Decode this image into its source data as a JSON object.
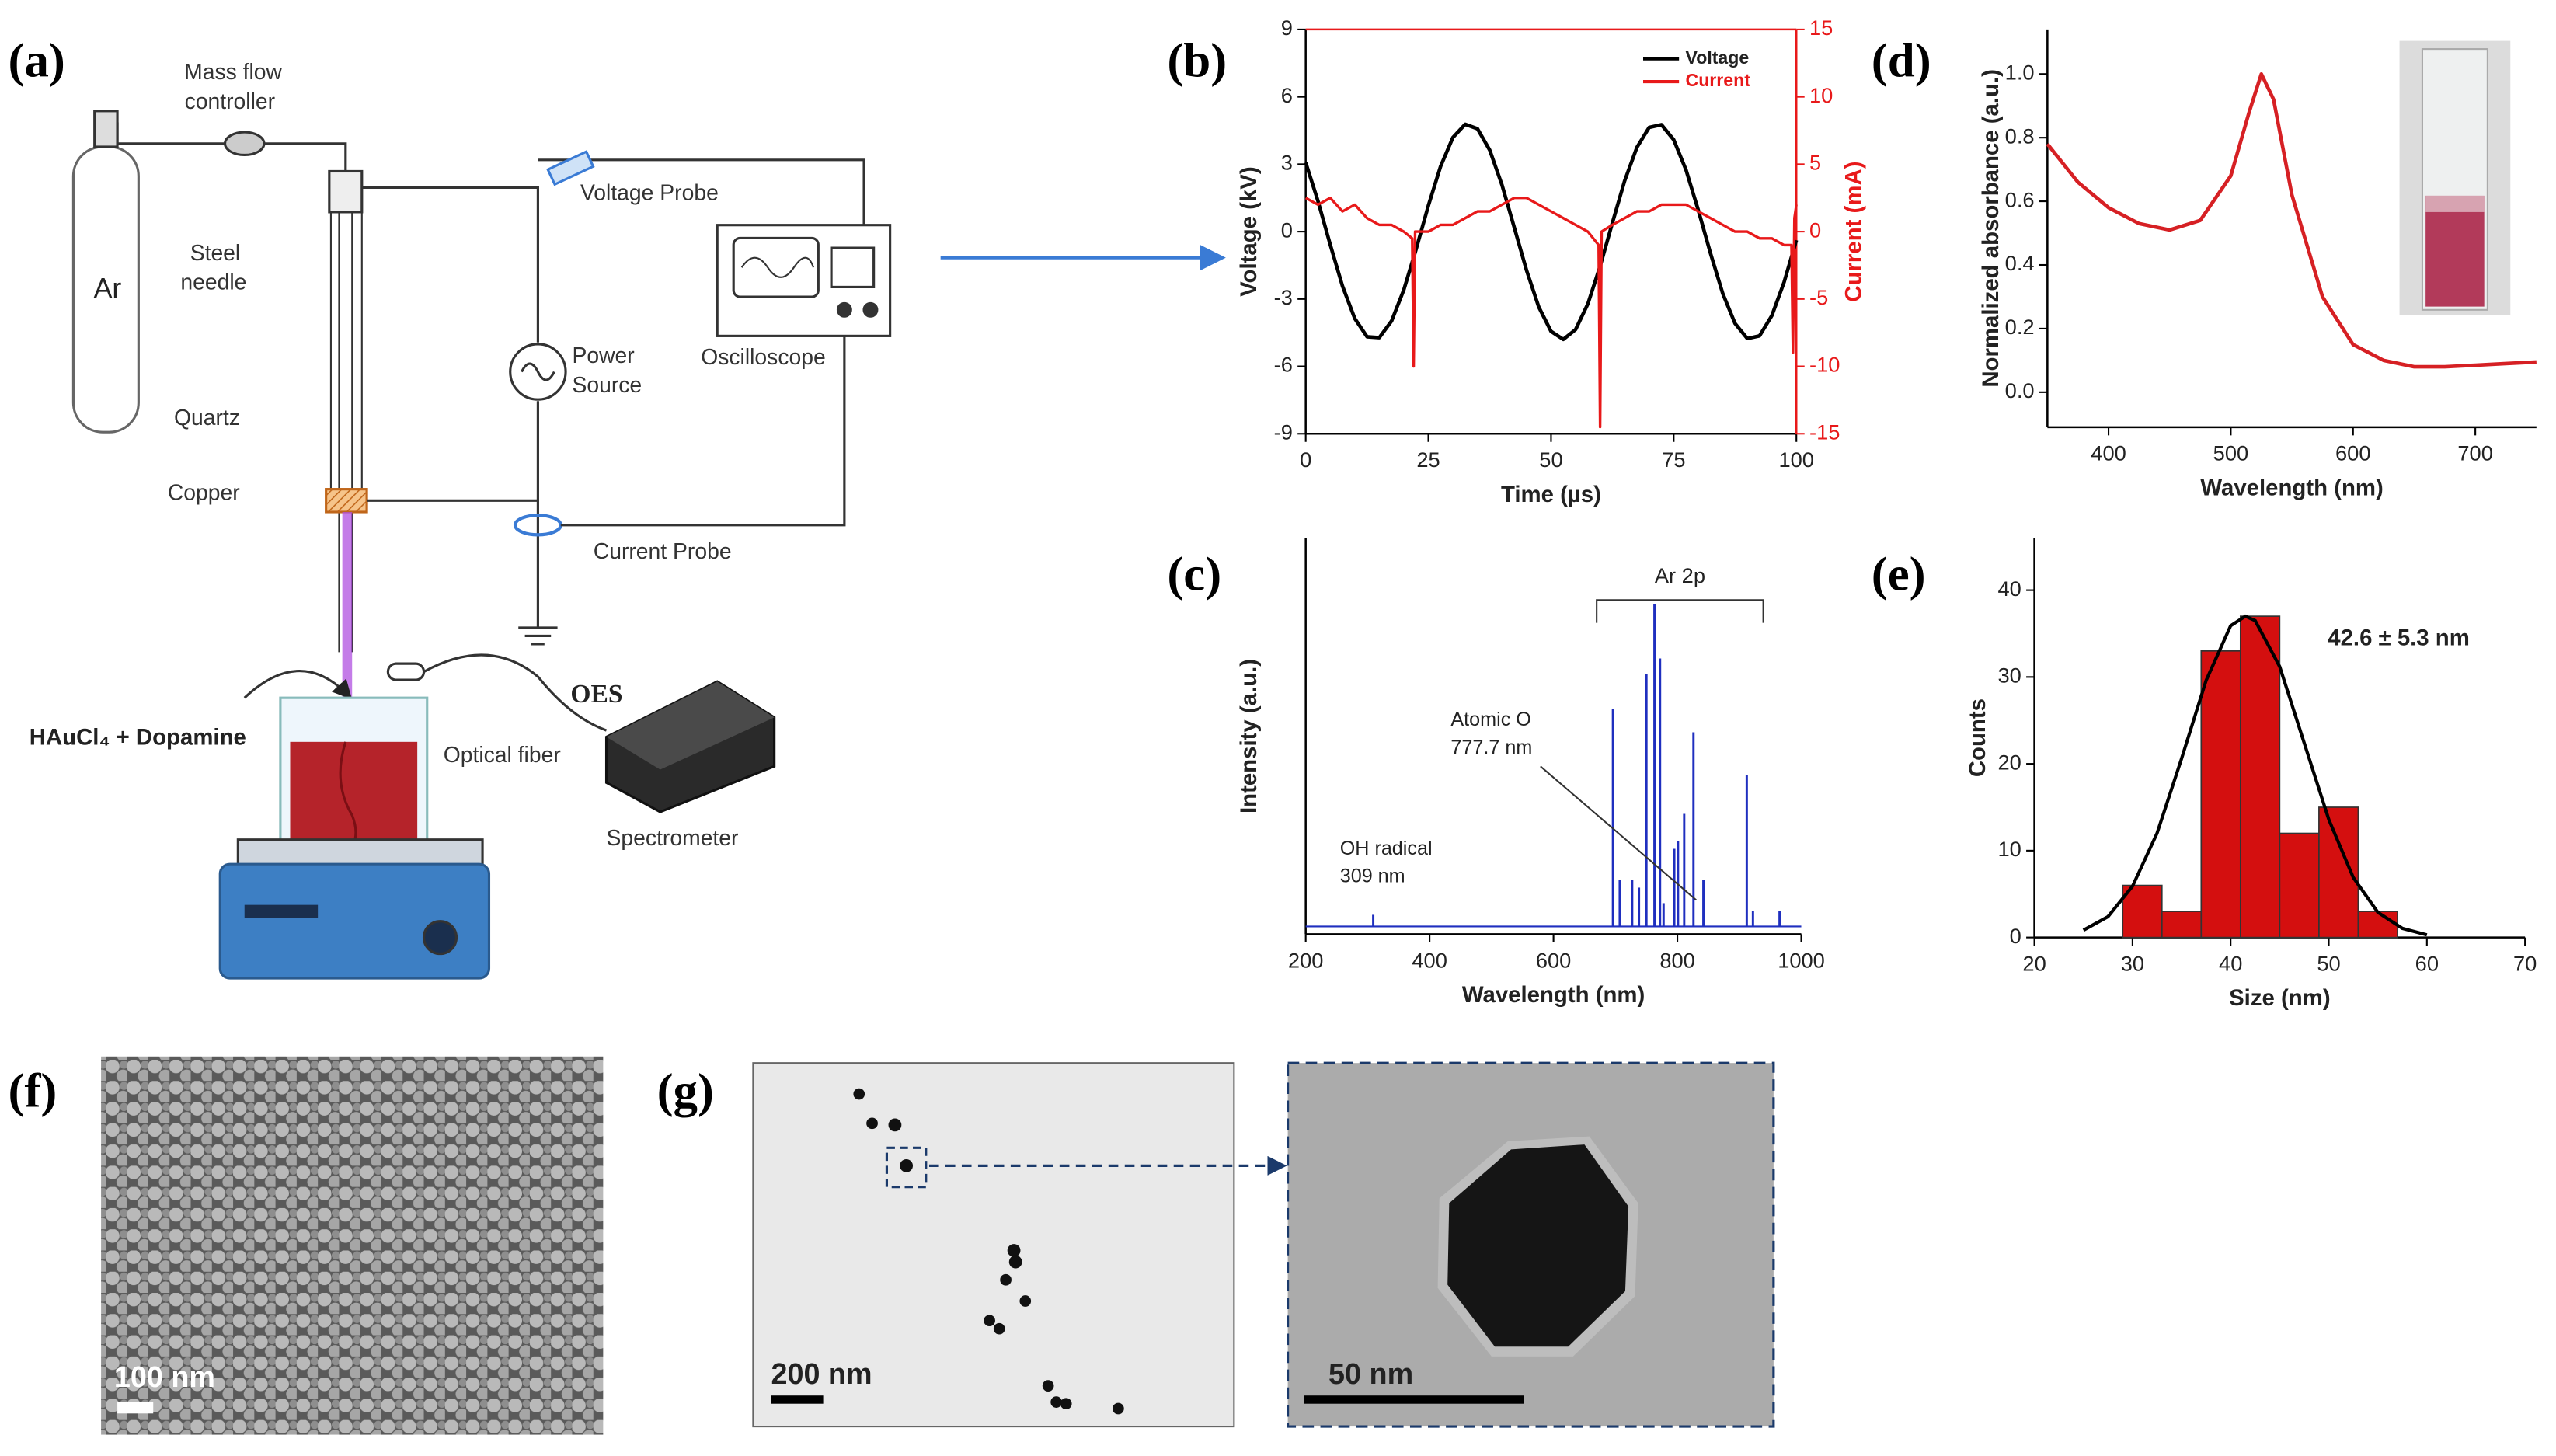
{
  "panel_labels": [
    "(a)",
    "(b)",
    "(c)",
    "(d)",
    "(e)",
    "(f)",
    "(g)"
  ],
  "diagram": {
    "labels": [
      "Mass flow",
      "controller",
      "Ar",
      "Steel",
      "needle",
      "Quartz",
      "Copper",
      "Voltage Probe",
      "Power",
      "Source",
      "Oscilloscope",
      "Current Probe",
      "OES",
      "HAuCl₄ + Dopamine",
      "Optical fiber",
      "Spectrometer"
    ]
  },
  "chart_data": [
    {
      "type": "line",
      "xlabel": "Time (µs)",
      "ylabel": "Voltage (kV)",
      "y2label": "Current (mA)",
      "xlim": [
        0,
        100
      ],
      "xticks": [
        0,
        25,
        50,
        75,
        100
      ],
      "ylim": [
        -9,
        9
      ],
      "yticks": [
        -9,
        -6,
        -3,
        0,
        3,
        6,
        9
      ],
      "y2lim": [
        -15,
        15
      ],
      "y2ticks": [
        -15,
        -10,
        -5,
        0,
        5,
        10,
        15
      ],
      "legend": "upper right",
      "series": [
        {
          "name": "Voltage",
          "color": "#000000",
          "x": [
            0,
            2.5,
            5,
            7.5,
            10,
            12.5,
            15,
            17.5,
            20,
            22.5,
            25,
            27.5,
            30,
            32.5,
            35,
            37.5,
            40,
            42.5,
            45,
            47.5,
            50,
            52.5,
            55,
            57.5,
            60,
            62.5,
            65,
            67.5,
            70,
            72.5,
            75,
            77.5,
            80,
            82.5,
            85,
            87.5,
            90,
            92.5,
            95,
            97.5,
            100
          ],
          "values": [
            3.07,
            1.36,
            -0.58,
            -2.43,
            -3.87,
            -4.68,
            -4.72,
            -3.98,
            -2.59,
            -0.78,
            1.16,
            2.91,
            4.19,
            4.78,
            4.58,
            3.63,
            2.08,
            0.19,
            -1.72,
            -3.36,
            -4.44,
            -4.8,
            -4.36,
            -3.22,
            -1.54,
            0.39,
            2.26,
            3.75,
            4.64,
            4.76,
            4.09,
            2.75,
            0.96,
            -0.97,
            -2.76,
            -4.09,
            -4.76,
            -4.64,
            -3.74,
            -2.25,
            -0.38
          ]
        },
        {
          "name": "Current",
          "color": "#e8191a",
          "axis": "y2",
          "x": [
            0,
            2.5,
            5,
            7.5,
            10,
            12.5,
            15,
            17.5,
            20,
            21.7,
            22,
            22.3,
            25,
            27.5,
            30,
            32.5,
            35,
            37.5,
            40,
            42.5,
            45,
            47.5,
            50,
            52.5,
            55,
            57.5,
            59.7,
            60,
            60.3,
            62.5,
            65,
            67.5,
            70,
            72.5,
            75,
            77.5,
            80,
            82.5,
            85,
            87.5,
            90,
            92.5,
            95,
            97.5,
            99,
            99.3,
            99.6,
            100
          ],
          "values": [
            2.5,
            2,
            2.5,
            1.5,
            2,
            1,
            0.5,
            0.5,
            0,
            -0.5,
            -10,
            0,
            0,
            0.5,
            0.5,
            1,
            1.5,
            1.5,
            2,
            2.5,
            2.5,
            2,
            1.5,
            1,
            0.5,
            0,
            -1,
            -14.5,
            0,
            0.5,
            1,
            1.5,
            1.5,
            2,
            2,
            2,
            1.5,
            1,
            0.5,
            0,
            0,
            -0.5,
            -0.5,
            -1,
            -1,
            -9,
            1,
            2
          ]
        }
      ]
    },
    {
      "type": "stem",
      "xlabel": "Wavelength (nm)",
      "ylabel": "Intensity (a.u.)",
      "xlim": [
        200,
        1000
      ],
      "xticks": [
        200,
        400,
        600,
        800,
        1000
      ],
      "ylim": [
        -0.02,
        1
      ],
      "color": "#1f2fbf",
      "x": [
        309,
        696,
        707,
        727,
        738,
        750,
        763,
        772,
        777.7,
        795,
        801,
        811,
        826,
        842,
        912,
        922,
        965
      ],
      "values": [
        0.03,
        0.56,
        0.12,
        0.12,
        0.1,
        0.65,
        0.83,
        0.69,
        0.06,
        0.2,
        0.22,
        0.29,
        0.5,
        0.12,
        0.39,
        0.04,
        0.04
      ],
      "annotations": [
        "Ar 2p",
        "Atomic O",
        "777.7 nm",
        "OH radical",
        "309 nm"
      ]
    },
    {
      "type": "line",
      "xlabel": "Wavelength (nm)",
      "ylabel": "Normalized absorbance (a.u.)",
      "xlim": [
        350,
        750
      ],
      "xticks": [
        400,
        500,
        600,
        700
      ],
      "ylim": [
        -0.11,
        1.14
      ],
      "yticks": [
        {
          "value": 0,
          "label": "0.0"
        },
        {
          "value": 0.2,
          "label": "0.2"
        },
        {
          "value": 0.4,
          "label": "0.4"
        },
        {
          "value": 0.6,
          "label": "0.6"
        },
        {
          "value": 0.8,
          "label": "0.8"
        },
        {
          "value": 1,
          "label": "1.0"
        }
      ],
      "series": [
        {
          "color": "#d62024",
          "x": [
            350,
            375,
            400,
            425,
            450,
            475,
            500,
            515,
            525,
            535,
            550,
            575,
            600,
            625,
            650,
            675,
            700,
            725,
            750
          ],
          "values": [
            0.78,
            0.66,
            0.58,
            0.53,
            0.51,
            0.54,
            0.68,
            0.88,
            1.0,
            0.92,
            0.62,
            0.3,
            0.15,
            0.1,
            0.08,
            0.08,
            0.085,
            0.09,
            0.095
          ]
        }
      ]
    },
    {
      "type": "histogram",
      "xlabel": "Size (nm)",
      "ylabel": "Counts",
      "xlim": [
        20,
        70
      ],
      "xticks": [
        20,
        30,
        40,
        50,
        60,
        70
      ],
      "ylim": [
        0,
        46
      ],
      "yticks": [
        0,
        10,
        20,
        30,
        40
      ],
      "color": "#d40f0f",
      "bins": [
        29,
        33,
        37,
        41,
        45,
        49,
        53,
        57
      ],
      "counts": [
        6,
        3,
        33,
        37,
        12,
        15,
        3
      ],
      "fit": {
        "color": "#000000",
        "x": [
          25,
          27.5,
          30,
          32.5,
          35,
          37.5,
          40,
          41.5,
          42.5,
          45,
          47.5,
          50,
          52.5,
          55,
          57.5,
          60
        ],
        "values": [
          0.84,
          2.4,
          5.9,
          12.0,
          20.6,
          29.6,
          35.9,
          37,
          36.5,
          31.2,
          22.4,
          13.6,
          6.9,
          2.9,
          1.05,
          0.3
        ]
      },
      "annotation": "42.6 ± 5.3 nm"
    }
  ],
  "images": {
    "f": {
      "scale_bar": "100 nm"
    },
    "g": {
      "scale_bar": "200 nm",
      "inset_scale_bar": "50 nm"
    }
  }
}
